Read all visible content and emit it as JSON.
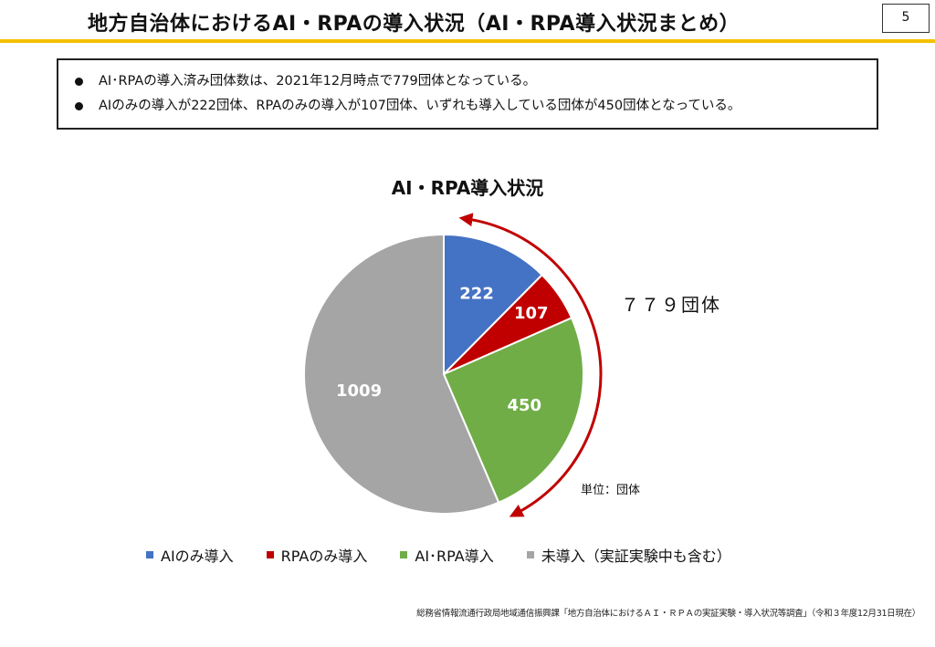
{
  "header": {
    "title": "地方自治体におけるAI・RPAの導入状況（AI・RPA導入状況まとめ）",
    "page_number": "5"
  },
  "summary": {
    "bullets": [
      "AI･RPAの導入済み団体数は、2021年12月時点で779団体となっている。",
      "AIのみの導入が222団体、RPAのみの導入が107団体、いずれも導入している団体が450団体となっている。"
    ]
  },
  "annotation": {
    "total": "７７９団体",
    "unit": "単位：団体"
  },
  "source": "総務省情報流通行政局地域通信振興課「地方自治体におけるＡＩ・ＲＰＡの実証実験・導入状況等調査」（令和３年度12月31日現在）",
  "colors": {
    "ai_only": "#4472c4",
    "rpa_only": "#c00000",
    "both": "#70ad47",
    "none": "#a5a5a5",
    "arrow": "#c00000",
    "title_rule": "#f2c200"
  },
  "chart_data": {
    "type": "pie",
    "title": "AI・RPA導入状況",
    "categories": [
      "AIのみ導入",
      "RPAのみ導入",
      "AI･RPA導入",
      "未導入（実証実験中も含む）"
    ],
    "values": [
      222,
      107,
      450,
      1009
    ],
    "legend": "bottom"
  }
}
